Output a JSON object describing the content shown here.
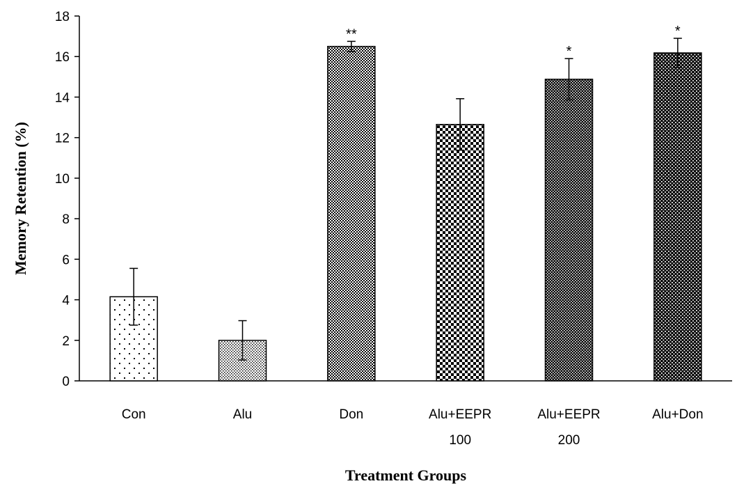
{
  "chart_data": {
    "type": "bar",
    "title": "",
    "xlabel": "Treatment Groups",
    "ylabel": "Memory Retention  (%)",
    "ylim": [
      0,
      18
    ],
    "yticks": [
      0,
      2,
      4,
      6,
      8,
      10,
      12,
      14,
      16,
      18
    ],
    "grid": false,
    "categories": [
      [
        "Con"
      ],
      [
        "Alu"
      ],
      [
        "Don"
      ],
      [
        "Alu+EEPR",
        "100"
      ],
      [
        "Alu+EEPR",
        "200"
      ],
      [
        "Alu+Don"
      ]
    ],
    "values": [
      4.15,
      2.0,
      16.5,
      12.65,
      14.88,
      16.18
    ],
    "errors": [
      1.4,
      0.97,
      0.25,
      1.27,
      1.02,
      0.72
    ],
    "annotations": [
      "",
      "",
      "**",
      "",
      "*",
      "*"
    ],
    "fill_patterns": [
      "sparse-dots",
      "fine-dots",
      "fine-checker",
      "coarse-checker",
      "dense-checker",
      "dark-checker"
    ],
    "bar_color": "#000000",
    "background_color": "#ffffff"
  }
}
